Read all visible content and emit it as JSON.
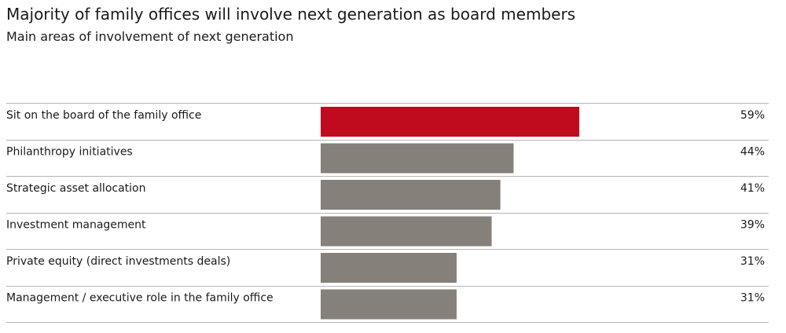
{
  "chart_data": {
    "type": "bar",
    "orientation": "horizontal",
    "title": "Majority of family offices will involve next generation as board members",
    "subtitle": "Main areas of involvement of next generation",
    "categories": [
      "Sit on the board of the family office",
      "Philanthropy initiatives",
      "Strategic asset allocation",
      "Investment management",
      "Private equity (direct investments deals)",
      "Management / executive role in the family office"
    ],
    "values": [
      59,
      44,
      41,
      39,
      31,
      31
    ],
    "value_labels": [
      "59%",
      "44%",
      "41%",
      "39%",
      "31%",
      "31%"
    ],
    "value_unit": "%",
    "colors": {
      "highlight": "#c00a1e",
      "default": "#858079"
    },
    "highlight_index": 0
  }
}
